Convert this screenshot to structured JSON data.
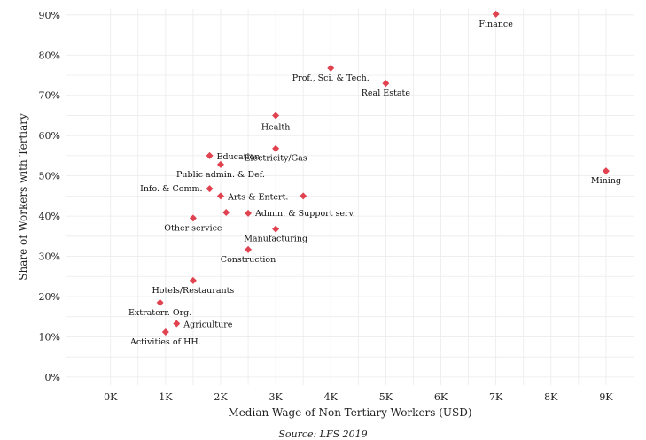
{
  "chart_data": {
    "type": "scatter",
    "xlabel": "Median Wage of Non-Tertiary Workers (USD)",
    "ylabel": "Share of Workers with Tertiary",
    "xlim": [
      -0.8,
      9.5
    ],
    "ylim": [
      -2,
      91.5
    ],
    "x_ticks": [
      0,
      1,
      2,
      3,
      4,
      5,
      6,
      7,
      8,
      9
    ],
    "x_tick_labels": [
      "0K",
      "1K",
      "2K",
      "3K",
      "4K",
      "5K",
      "6K",
      "7K",
      "8K",
      "9K"
    ],
    "y_ticks": [
      0,
      10,
      20,
      30,
      40,
      50,
      60,
      70,
      80,
      90
    ],
    "y_tick_labels": [
      "0%",
      "10%",
      "20%",
      "30%",
      "40%",
      "50%",
      "60%",
      "70%",
      "80%",
      "90%"
    ],
    "grid": true,
    "marker_color": "#e0424f",
    "points": [
      {
        "label": "Finance",
        "x": 7.0,
        "y": 90.2,
        "anchor": "middle",
        "dx": 0,
        "dy": 14
      },
      {
        "label": "Prof., Sci. & Tech.",
        "x": 4.0,
        "y": 76.8,
        "anchor": "middle",
        "dx": 0,
        "dy": 14
      },
      {
        "label": "Real Estate",
        "x": 5.0,
        "y": 73.0,
        "anchor": "middle",
        "dx": 0,
        "dy": 14
      },
      {
        "label": "Health",
        "x": 3.0,
        "y": 65.0,
        "anchor": "middle",
        "dx": 0,
        "dy": 16
      },
      {
        "label": "Electricity/Gas",
        "x": 3.0,
        "y": 56.8,
        "anchor": "middle",
        "dx": 0,
        "dy": 14
      },
      {
        "label": "Education",
        "x": 1.8,
        "y": 55.0,
        "anchor": "start",
        "dx": 8,
        "dy": 4
      },
      {
        "label": "Public admin. & Def.",
        "x": 2.0,
        "y": 52.8,
        "anchor": "middle",
        "dx": 0,
        "dy": 14
      },
      {
        "label": "Mining",
        "x": 9.0,
        "y": 51.2,
        "anchor": "middle",
        "dx": 0,
        "dy": 14
      },
      {
        "label": "Info. & Comm.",
        "x": 1.8,
        "y": 46.8,
        "anchor": "end",
        "dx": -8,
        "dy": 3
      },
      {
        "label": "Arts & Entert.",
        "x": 2.0,
        "y": 45.0,
        "anchor": "start",
        "dx": 8,
        "dy": 4
      },
      {
        "label": "",
        "x": 3.5,
        "y": 45.0,
        "anchor": "start",
        "dx": 0,
        "dy": 0
      },
      {
        "label": "",
        "x": 2.1,
        "y": 40.9,
        "anchor": "start",
        "dx": 0,
        "dy": 0
      },
      {
        "label": "Admin. & Support serv.",
        "x": 2.5,
        "y": 40.7,
        "anchor": "start",
        "dx": 8,
        "dy": 3
      },
      {
        "label": "Other service",
        "x": 1.5,
        "y": 39.5,
        "anchor": "middle",
        "dx": 0,
        "dy": 14
      },
      {
        "label": "Manufacturing",
        "x": 3.0,
        "y": 36.8,
        "anchor": "middle",
        "dx": 0,
        "dy": 14
      },
      {
        "label": "Construction",
        "x": 2.5,
        "y": 31.7,
        "anchor": "middle",
        "dx": 0,
        "dy": 14
      },
      {
        "label": "Hotels/Restaurants",
        "x": 1.5,
        "y": 24.0,
        "anchor": "middle",
        "dx": 0,
        "dy": 14
      },
      {
        "label": "Extraterr. Org.",
        "x": 0.9,
        "y": 18.5,
        "anchor": "middle",
        "dx": 0,
        "dy": 14
      },
      {
        "label": "Agriculture",
        "x": 1.2,
        "y": 13.3,
        "anchor": "start",
        "dx": 8,
        "dy": 4
      },
      {
        "label": "Activities of HH.",
        "x": 1.0,
        "y": 11.2,
        "anchor": "middle",
        "dx": 0,
        "dy": 14
      }
    ],
    "caption": "Source: LFS 2019"
  }
}
